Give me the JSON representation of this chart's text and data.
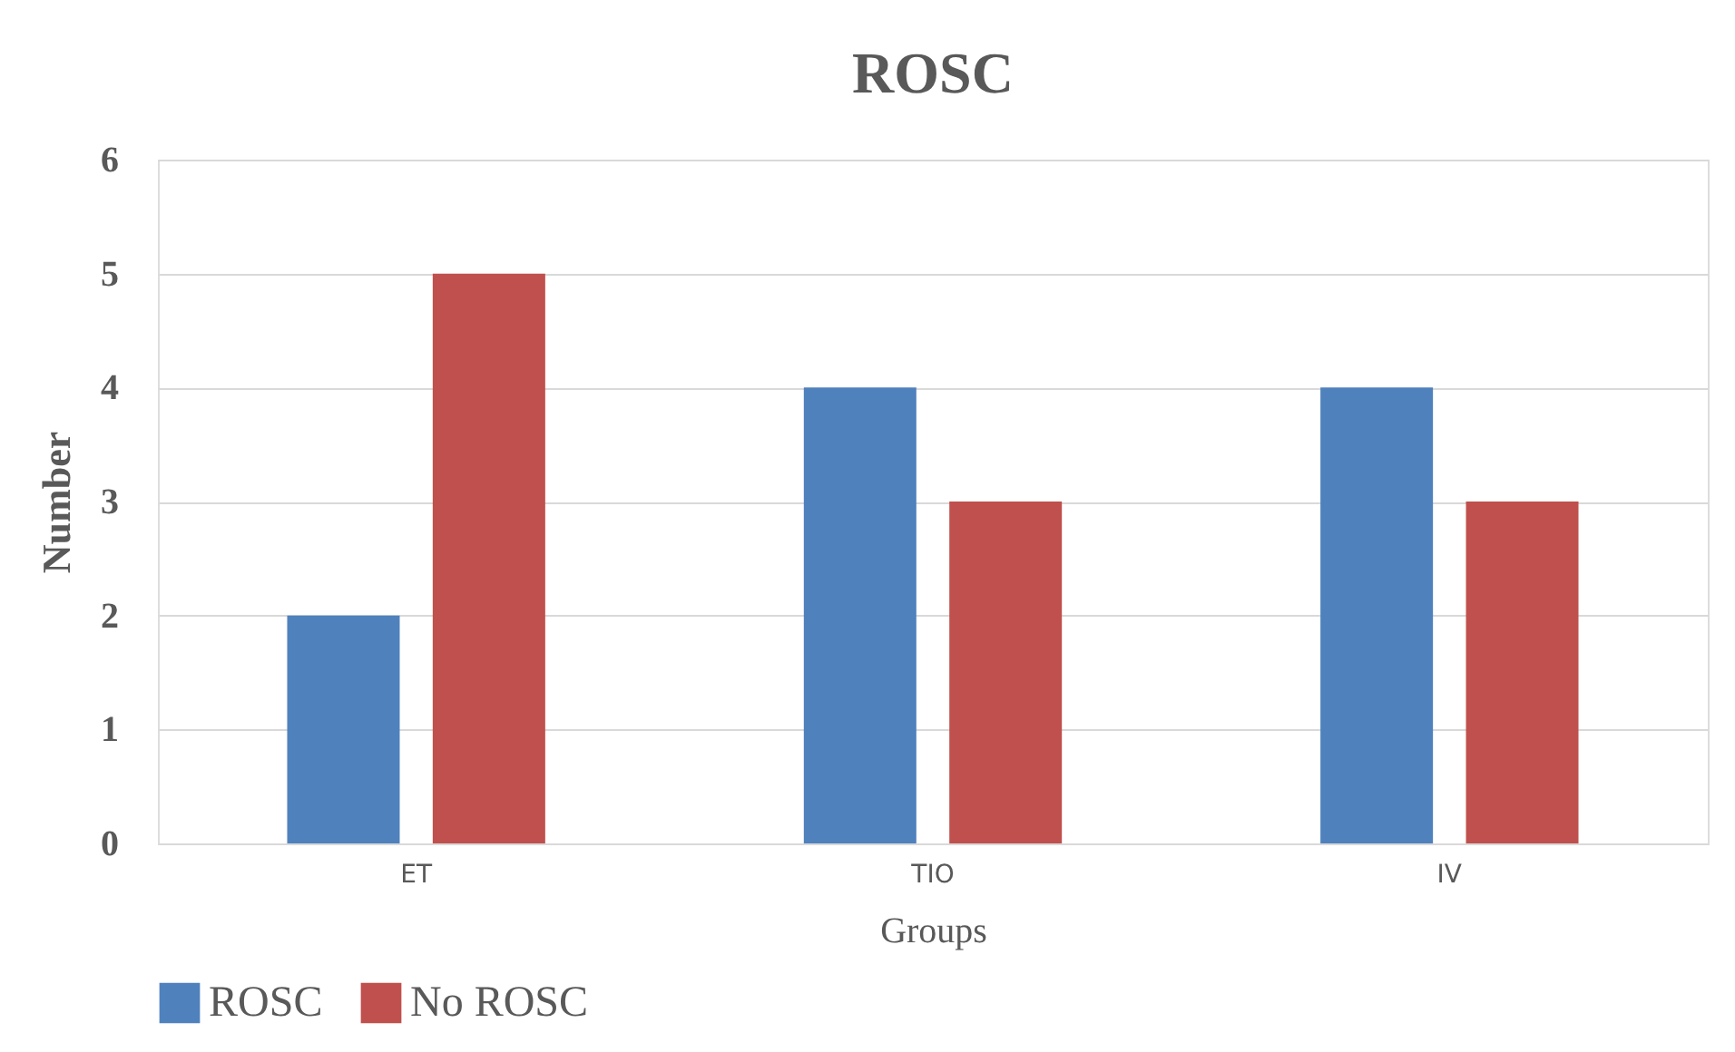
{
  "chart_data": {
    "type": "bar",
    "title": "ROSC",
    "xlabel": "Groups",
    "ylabel": "Number",
    "categories": [
      "ET",
      "TIO",
      "IV"
    ],
    "series": [
      {
        "name": "ROSC",
        "color": "#4f81bd",
        "values": [
          2,
          4,
          4
        ]
      },
      {
        "name": "No ROSC",
        "color": "#c0504d",
        "values": [
          5,
          3,
          3
        ]
      }
    ],
    "ylim": [
      0,
      6
    ],
    "yticks": [
      0,
      1,
      2,
      3,
      4,
      5,
      6
    ],
    "grid": "y",
    "legend": "bottom"
  }
}
